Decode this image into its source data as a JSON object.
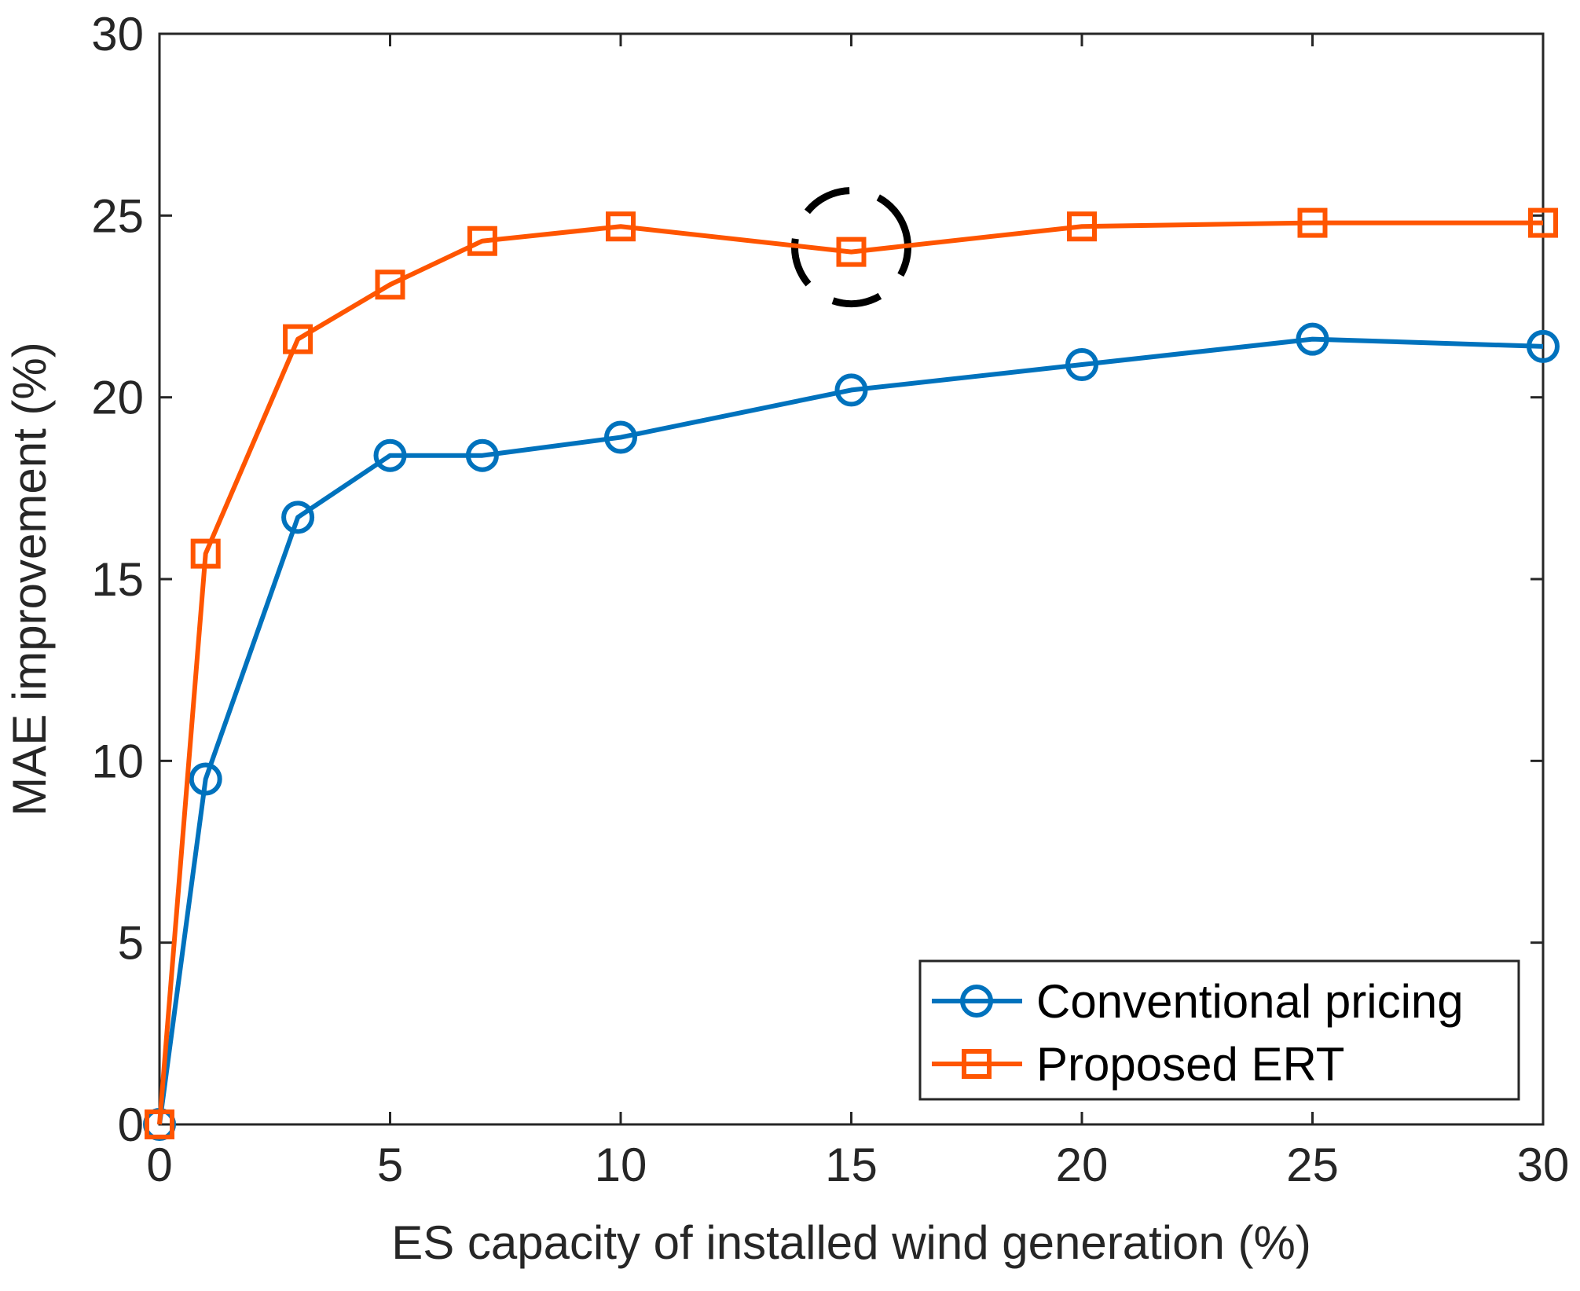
{
  "chart_data": {
    "type": "line",
    "title": "",
    "xlabel": "ES capacity of installed wind generation (%)",
    "ylabel": "MAE improvement (%)",
    "xlim": [
      0,
      30
    ],
    "ylim": [
      0,
      30
    ],
    "xticks": [
      0,
      5,
      10,
      15,
      20,
      25,
      30
    ],
    "yticks": [
      0,
      5,
      10,
      15,
      20,
      25,
      30
    ],
    "grid": false,
    "legend_position": "bottom-right",
    "x": [
      0,
      1,
      3,
      5,
      7,
      10,
      15,
      20,
      25,
      30
    ],
    "series": [
      {
        "name": "Conventional pricing",
        "marker": "circle",
        "color": "#0072BD",
        "values": [
          0,
          9.5,
          16.7,
          18.4,
          18.4,
          18.9,
          20.2,
          20.9,
          21.6,
          21.4
        ]
      },
      {
        "name": "Proposed ERT",
        "marker": "square",
        "color": "#FF5500",
        "values": [
          0,
          15.7,
          21.6,
          23.1,
          24.3,
          24.7,
          24.0,
          24.7,
          24.8,
          24.8
        ]
      }
    ],
    "annotations": [
      {
        "type": "dashed-circle",
        "label": "highlight",
        "x": 15,
        "y": 24.0,
        "color": "#000000"
      }
    ]
  }
}
